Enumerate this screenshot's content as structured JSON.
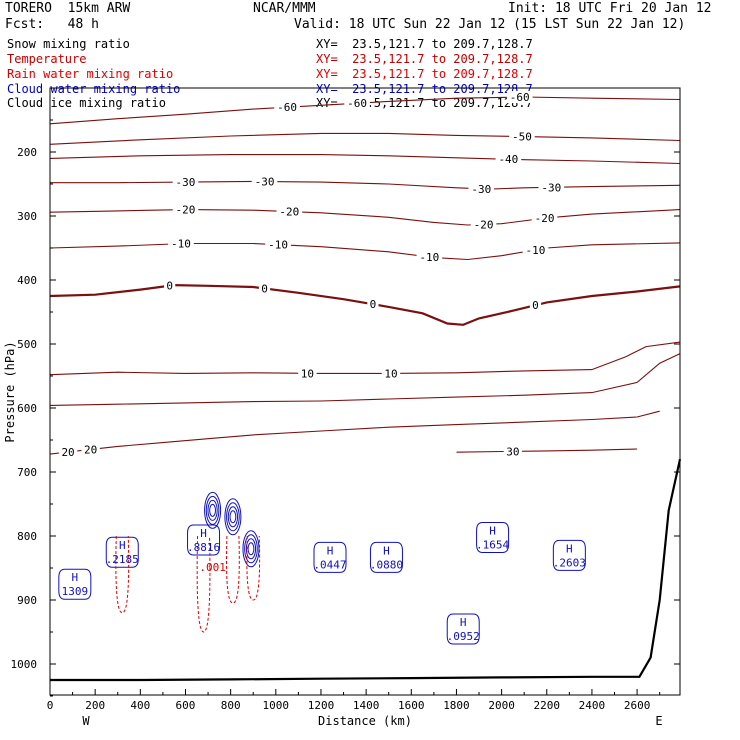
{
  "header": {
    "model": "TORERO  15km ARW",
    "center": "NCAR/MMM",
    "init": "Init: 18 UTC Fri 20 Jan 12",
    "fcst": "Fcst:   48 h",
    "valid": "Valid: 18 UTC Sun 22 Jan 12 (15 LST Sun 22 Jan 12)"
  },
  "legend": [
    {
      "name": "Snow mixing ratio",
      "xy": "XY=  23.5,121.7 to 209.7,128.7",
      "color": "#000000"
    },
    {
      "name": "Temperature",
      "xy": "XY=  23.5,121.7 to 209.7,128.7",
      "color": "#c00000"
    },
    {
      "name": "Rain water mixing ratio",
      "xy": "XY=  23.5,121.7 to 209.7,128.7",
      "color": "#e00000"
    },
    {
      "name": "Cloud water mixing ratio",
      "xy": "XY=  23.5,121.7 to 209.7,128.7",
      "color": "#0000c0"
    },
    {
      "name": "Cloud ice mixing ratio",
      "xy": "XY=  23.5,121.7 to 209.7,128.7",
      "color": "#000000"
    }
  ],
  "colors": {
    "temperature": "#7a1010",
    "zero_isotherm": "#7a1010",
    "cloud_water": "#1010c0",
    "rain": "#e00000",
    "terrain": "#000000",
    "frame": "#000000"
  },
  "chart_data": {
    "type": "cross-section contour",
    "xlabel": "Distance (km)",
    "ylabel": "Pressure (hPa)",
    "xlim": [
      0,
      2790
    ],
    "ylim_hpa": [
      1065,
      100
    ],
    "x_ticks": [
      0,
      200,
      400,
      600,
      800,
      1000,
      1200,
      1400,
      1600,
      1800,
      2000,
      2200,
      2400,
      2600
    ],
    "y_ticks": [
      200,
      300,
      400,
      500,
      600,
      700,
      800,
      900,
      1000
    ],
    "endpoints": {
      "left": "W",
      "right": "E"
    },
    "temperature_contours": [
      {
        "level": -60,
        "labels": [
          {
            "x": 1050,
            "text": "-60"
          },
          {
            "x": 1360,
            "text": "-60"
          },
          {
            "x": 2080,
            "text": "-60"
          }
        ],
        "points": [
          [
            0,
            156
          ],
          [
            300,
            148
          ],
          [
            600,
            141
          ],
          [
            900,
            133
          ],
          [
            1200,
            127
          ],
          [
            1500,
            121
          ],
          [
            1800,
            116
          ],
          [
            2100,
            114
          ],
          [
            2400,
            116
          ],
          [
            2790,
            118
          ]
        ]
      },
      {
        "level": -50,
        "labels": [
          {
            "x": 2090,
            "text": "-50"
          }
        ],
        "points": [
          [
            0,
            188
          ],
          [
            400,
            181
          ],
          [
            800,
            175
          ],
          [
            1200,
            171
          ],
          [
            1500,
            171
          ],
          [
            1800,
            174
          ],
          [
            2100,
            176
          ],
          [
            2400,
            178
          ],
          [
            2790,
            182
          ]
        ]
      },
      {
        "level": -40,
        "labels": [
          {
            "x": 2030,
            "text": "-40"
          }
        ],
        "points": [
          [
            0,
            210
          ],
          [
            400,
            206
          ],
          [
            800,
            204
          ],
          [
            1200,
            204
          ],
          [
            1500,
            206
          ],
          [
            1800,
            209
          ],
          [
            2100,
            212
          ],
          [
            2400,
            214
          ],
          [
            2790,
            218
          ]
        ]
      },
      {
        "level": -30,
        "labels": [
          {
            "x": 600,
            "text": "-30"
          },
          {
            "x": 950,
            "text": "-30"
          },
          {
            "x": 1910,
            "text": "-30"
          },
          {
            "x": 2220,
            "text": "-30"
          }
        ],
        "points": [
          [
            0,
            248
          ],
          [
            300,
            248
          ],
          [
            600,
            247
          ],
          [
            900,
            246
          ],
          [
            1200,
            247
          ],
          [
            1500,
            250
          ],
          [
            1800,
            256
          ],
          [
            1950,
            258
          ],
          [
            2100,
            256
          ],
          [
            2400,
            254
          ],
          [
            2790,
            252
          ]
        ]
      },
      {
        "level": -20,
        "labels": [
          {
            "x": 600,
            "text": "-20"
          },
          {
            "x": 1060,
            "text": "-20"
          },
          {
            "x": 1920,
            "text": "-20"
          },
          {
            "x": 2190,
            "text": "-20"
          }
        ],
        "points": [
          [
            0,
            294
          ],
          [
            300,
            292
          ],
          [
            600,
            290
          ],
          [
            900,
            291
          ],
          [
            1200,
            295
          ],
          [
            1500,
            302
          ],
          [
            1700,
            310
          ],
          [
            1850,
            314
          ],
          [
            2000,
            312
          ],
          [
            2200,
            303
          ],
          [
            2400,
            297
          ],
          [
            2790,
            290
          ]
        ]
      },
      {
        "level": -10,
        "labels": [
          {
            "x": 580,
            "text": "-10"
          },
          {
            "x": 1010,
            "text": "-10"
          },
          {
            "x": 1680,
            "text": "-10"
          },
          {
            "x": 2150,
            "text": "-10"
          }
        ],
        "points": [
          [
            0,
            350
          ],
          [
            300,
            347
          ],
          [
            600,
            343
          ],
          [
            900,
            343
          ],
          [
            1200,
            348
          ],
          [
            1500,
            356
          ],
          [
            1700,
            365
          ],
          [
            1850,
            368
          ],
          [
            2000,
            362
          ],
          [
            2200,
            350
          ],
          [
            2400,
            345
          ],
          [
            2790,
            342
          ]
        ]
      },
      {
        "level": 0,
        "heavy": true,
        "labels": [
          {
            "x": 530,
            "text": "0"
          },
          {
            "x": 950,
            "text": "0"
          },
          {
            "x": 1430,
            "text": "0"
          },
          {
            "x": 2150,
            "text": "0"
          }
        ],
        "points": [
          [
            0,
            425
          ],
          [
            200,
            423
          ],
          [
            400,
            415
          ],
          [
            550,
            408
          ],
          [
            700,
            409
          ],
          [
            900,
            411
          ],
          [
            1100,
            420
          ],
          [
            1300,
            430
          ],
          [
            1500,
            442
          ],
          [
            1650,
            452
          ],
          [
            1760,
            468
          ],
          [
            1830,
            470
          ],
          [
            1900,
            460
          ],
          [
            2050,
            448
          ],
          [
            2200,
            435
          ],
          [
            2400,
            425
          ],
          [
            2600,
            418
          ],
          [
            2790,
            410
          ]
        ]
      },
      {
        "level": 10,
        "labels": [
          {
            "x": 1140,
            "text": "10"
          },
          {
            "x": 1510,
            "text": "10"
          }
        ],
        "points": [
          [
            0,
            548
          ],
          [
            300,
            544
          ],
          [
            600,
            546
          ],
          [
            900,
            545
          ],
          [
            1200,
            546
          ],
          [
            1500,
            546
          ],
          [
            1800,
            545
          ],
          [
            2100,
            542
          ],
          [
            2400,
            540
          ],
          [
            2550,
            520
          ],
          [
            2640,
            504
          ],
          [
            2790,
            497
          ]
        ]
      },
      {
        "level": 10,
        "labels": [],
        "points": [
          [
            0,
            596
          ],
          [
            300,
            594
          ],
          [
            600,
            592
          ],
          [
            900,
            590
          ],
          [
            1200,
            589
          ],
          [
            1500,
            586
          ],
          [
            1800,
            583
          ],
          [
            2100,
            580
          ],
          [
            2400,
            576
          ],
          [
            2600,
            560
          ],
          [
            2700,
            530
          ],
          [
            2790,
            515
          ]
        ]
      },
      {
        "level": 20,
        "labels": [
          {
            "x": 80,
            "text": "20"
          },
          {
            "x": 180,
            "text": "20"
          }
        ],
        "points": [
          [
            0,
            672
          ],
          [
            150,
            666
          ],
          [
            300,
            660
          ],
          [
            500,
            654
          ],
          [
            700,
            648
          ],
          [
            900,
            642
          ],
          [
            1200,
            636
          ],
          [
            1500,
            630
          ],
          [
            1800,
            626
          ],
          [
            2100,
            622
          ],
          [
            2400,
            618
          ],
          [
            2600,
            614
          ],
          [
            2700,
            605
          ]
        ]
      },
      {
        "level": 30,
        "labels": [
          {
            "x": 2050,
            "text": "30"
          }
        ],
        "points": [
          [
            1800,
            669
          ],
          [
            2000,
            668
          ],
          [
            2200,
            667
          ],
          [
            2400,
            666
          ],
          [
            2600,
            664
          ]
        ]
      }
    ],
    "cloud_water_maxima": [
      {
        "x": 110,
        "text": "1309",
        "hpa": 880
      },
      {
        "x": 320,
        "text": ".2185",
        "hpa": 830
      },
      {
        "x": 680,
        "text": ".8816",
        "hpa": 811
      },
      {
        "x": 1240,
        "text": ".0447",
        "hpa": 838
      },
      {
        "x": 1490,
        "text": ".0880",
        "hpa": 838
      },
      {
        "x": 1960,
        "text": ".1654",
        "hpa": 807
      },
      {
        "x": 2300,
        "text": ".2603",
        "hpa": 835
      },
      {
        "x": 1830,
        "text": ".0952",
        "hpa": 950
      }
    ],
    "rain_labels": [
      {
        "x": 720,
        "text": ".001",
        "hpa": 855
      }
    ],
    "terrain_hpa": [
      [
        0,
        1025
      ],
      [
        400,
        1025
      ],
      [
        800,
        1024
      ],
      [
        1200,
        1023
      ],
      [
        1600,
        1022
      ],
      [
        2000,
        1021
      ],
      [
        2400,
        1020
      ],
      [
        2610,
        1020
      ],
      [
        2660,
        990
      ],
      [
        2700,
        900
      ],
      [
        2740,
        760
      ],
      [
        2790,
        680
      ]
    ]
  }
}
